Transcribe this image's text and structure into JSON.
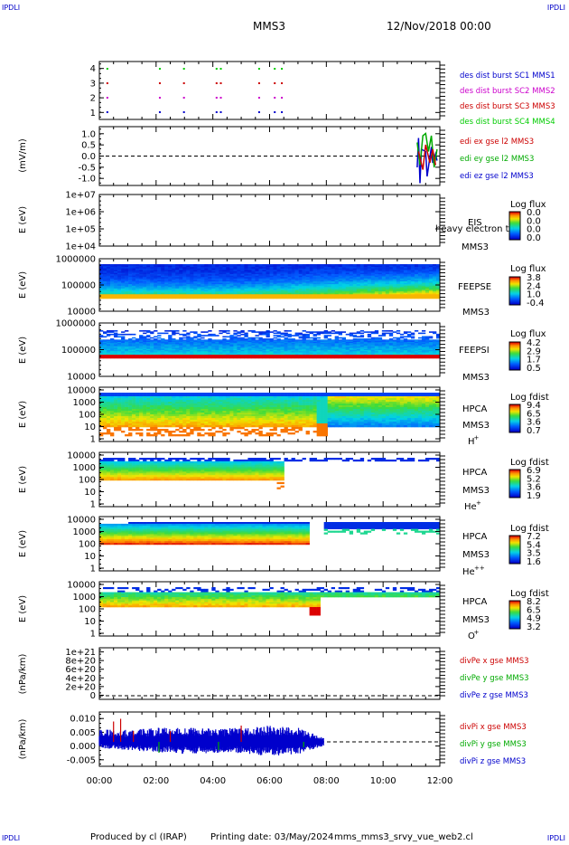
{
  "header": {
    "corner_labels": [
      "IPDLI",
      "IPDLI",
      "IPDLI",
      "IPDLI"
    ],
    "spacecraft": "MMS3",
    "datetime": "12/Nov/2018 00:00"
  },
  "footer": {
    "produced_by": "Produced by cl (IRAP)",
    "printing_date": "Printing date: 03/May/2024",
    "script_name": "mms_mms3_srvy_vue_web2.cl"
  },
  "chart_data": [
    {
      "type": "scatter",
      "panel": "burst-availability",
      "yticks": [
        "4",
        "3",
        "2",
        "1"
      ],
      "ylim": [
        0.5,
        4.5
      ],
      "legend": [
        {
          "text": "des dist burst SC1 MMS1",
          "color": "#0000cc"
        },
        {
          "text": "des dist burst SC2 MMS2",
          "color": "#cc00cc"
        },
        {
          "text": "des dist burst SC3 MMS3",
          "color": "#cc0000"
        },
        {
          "text": "des dist burst SC4 MMS4",
          "color": "#00cc00"
        }
      ],
      "series": [
        {
          "y": 4,
          "color": "#00cc00",
          "x": [
            0.25,
            2.1,
            2.95,
            4.1,
            4.25,
            5.6,
            6.15,
            6.4
          ]
        },
        {
          "y": 3,
          "color": "#cc0000",
          "x": [
            0.25,
            2.1,
            2.95,
            4.1,
            4.25,
            5.6,
            6.15,
            6.4
          ]
        },
        {
          "y": 2,
          "color": "#cc00cc",
          "x": [
            0.25,
            2.1,
            2.95,
            4.1,
            4.25,
            5.6,
            6.15,
            6.4
          ]
        },
        {
          "y": 1,
          "color": "#0000cc",
          "x": [
            0.25,
            2.1,
            2.95,
            4.1,
            4.25,
            5.6,
            6.15,
            6.4
          ]
        }
      ]
    },
    {
      "type": "line",
      "panel": "edi-electric-field",
      "ylabel": "(mV/m)",
      "yticks": [
        "1.0",
        "0.5",
        "0.0",
        "-0.5",
        "-1.0"
      ],
      "ylim": [
        -1.3,
        1.3
      ],
      "legend": [
        {
          "text": "edi ex gse l2 MMS3",
          "color": "#cc0000"
        },
        {
          "text": "edi ey gse l2 MMS3",
          "color": "#00aa00"
        },
        {
          "text": "edi ez gse l2 MMS3",
          "color": "#0000cc"
        }
      ],
      "series": [
        {
          "color": "#0000cc",
          "x": [
            11.2,
            11.25,
            11.3,
            11.35,
            11.5,
            11.55,
            11.7,
            11.75,
            11.85,
            11.9
          ],
          "y": [
            -0.5,
            0.8,
            -1.2,
            0.3,
            0.2,
            -0.9,
            0.4,
            -0.3,
            0.1,
            -0.2
          ]
        },
        {
          "color": "#00aa00",
          "x": [
            11.2,
            11.3,
            11.4,
            11.5,
            11.6,
            11.7,
            11.8,
            11.9
          ],
          "y": [
            0.6,
            -0.4,
            0.9,
            1.0,
            0.2,
            0.9,
            -0.5,
            0.3
          ]
        },
        {
          "color": "#cc0000",
          "x": [
            11.25,
            11.4,
            11.5,
            11.65,
            11.75,
            11.85
          ],
          "y": [
            0.2,
            -0.6,
            0.5,
            -0.3,
            0.3,
            -0.4
          ]
        }
      ]
    },
    {
      "type": "heatmap",
      "panel": "eis",
      "ylabel": "E (eV)",
      "yticks": [
        "1e+07",
        "1e+06",
        "1e+05",
        "1e+04"
      ],
      "instrument": [
        "EIS",
        "heavy electron to",
        "MMS3"
      ],
      "colorbar": {
        "title": "Log flux",
        "ticks": [
          "0.0",
          "0.0",
          "0.0",
          "0.0"
        ]
      }
    },
    {
      "type": "heatmap",
      "panel": "feeps-electron",
      "ylabel": "E (eV)",
      "yticks": [
        "1000000",
        "100000",
        "10000"
      ],
      "instrument": [
        "FEEPSE",
        "MMS3"
      ],
      "colorbar": {
        "title": "Log flux",
        "ticks": [
          "3.8",
          "2.4",
          "1.0",
          "-0.4"
        ]
      }
    },
    {
      "type": "heatmap",
      "panel": "feeps-ion",
      "ylabel": "E (eV)",
      "yticks": [
        "1000000",
        "100000",
        "10000"
      ],
      "instrument": [
        "FEEPSI",
        "MMS3"
      ],
      "colorbar": {
        "title": "Log flux",
        "ticks": [
          "4.2",
          "2.9",
          "1.7",
          "0.5"
        ]
      }
    },
    {
      "type": "heatmap",
      "panel": "hpca-h",
      "ylabel": "E (eV)",
      "yticks": [
        "10000",
        "1000",
        "100",
        "10",
        "1"
      ],
      "instrument": [
        "HPCA",
        "MMS3",
        "H",
        "+"
      ],
      "colorbar": {
        "title": "Log fdist",
        "ticks": [
          "9.4",
          "6.5",
          "3.6",
          "0.7"
        ]
      }
    },
    {
      "type": "heatmap",
      "panel": "hpca-he",
      "ylabel": "E (eV)",
      "yticks": [
        "10000",
        "1000",
        "100",
        "10",
        "1"
      ],
      "instrument": [
        "HPCA",
        "MMS3",
        "He",
        "+"
      ],
      "colorbar": {
        "title": "Log fdist",
        "ticks": [
          "6.9",
          "5.2",
          "3.6",
          "1.9"
        ]
      }
    },
    {
      "type": "heatmap",
      "panel": "hpca-he2",
      "ylabel": "E (eV)",
      "yticks": [
        "10000",
        "1000",
        "100",
        "10",
        "1"
      ],
      "instrument": [
        "HPCA",
        "MMS3",
        "He",
        "++"
      ],
      "colorbar": {
        "title": "Log fdist",
        "ticks": [
          "7.2",
          "5.4",
          "3.5",
          "1.6"
        ]
      }
    },
    {
      "type": "heatmap",
      "panel": "hpca-o",
      "ylabel": "E (eV)",
      "yticks": [
        "10000",
        "1000",
        "100",
        "10",
        "1"
      ],
      "instrument": [
        "HPCA",
        "MMS3",
        "O",
        "+"
      ],
      "colorbar": {
        "title": "Log fdist",
        "ticks": [
          "8.2",
          "6.5",
          "4.9",
          "3.2"
        ]
      }
    },
    {
      "type": "line",
      "panel": "divpe",
      "ylabel": "(nPa/km)",
      "yticks": [
        "1e+21",
        "8e+20",
        "6e+20",
        "4e+20",
        "2e+20",
        "0"
      ],
      "legend": [
        {
          "text": "divPe x gse MMS3",
          "color": "#cc0000"
        },
        {
          "text": "divPe y gse MMS3",
          "color": "#00aa00"
        },
        {
          "text": "divPe z gse MMS3",
          "color": "#0000cc"
        }
      ]
    },
    {
      "type": "line",
      "panel": "divpi",
      "ylabel": "(nPa/km)",
      "yticks": [
        "0.010",
        "0.005",
        "0.000",
        "-0.005"
      ],
      "ylim": [
        -0.009,
        0.011
      ],
      "xticks": [
        "00:00",
        "02:00",
        "04:00",
        "06:00",
        "08:00",
        "10:00",
        "12:00"
      ],
      "xlim": [
        0,
        12
      ],
      "legend": [
        {
          "text": "divPi x gse MMS3",
          "color": "#cc0000"
        },
        {
          "text": "divPi y gse MMS3",
          "color": "#00aa00"
        },
        {
          "text": "divPi z gse MMS3",
          "color": "#0000cc"
        }
      ],
      "series": [
        {
          "name": "divPi z",
          "color": "#0000cc",
          "x_range": [
            0,
            7.9
          ],
          "envelope": [
            [
              0,
              0.0015,
              0.003
            ],
            [
              1,
              0.002,
              0.003
            ],
            [
              2,
              0.0025,
              0.0035
            ],
            [
              3,
              0.003,
              0.0035
            ],
            [
              4,
              0.0028,
              0.0035
            ],
            [
              5,
              0.0028,
              0.0035
            ],
            [
              6,
              0.0035,
              0.004
            ],
            [
              7,
              0.003,
              0.0035
            ],
            [
              7.9,
              0.001,
              0.001
            ]
          ]
        },
        {
          "name": "divPi x",
          "color": "#cc0000",
          "spikes": [
            [
              0.5,
              0.0075
            ],
            [
              0.75,
              0.0085
            ],
            [
              1.2,
              0.004
            ],
            [
              2.5,
              0.004
            ],
            [
              5.0,
              0.006
            ]
          ]
        },
        {
          "name": "divPi y",
          "color": "#00aa00",
          "spikes": [
            [
              2.1,
              -0.004
            ],
            [
              4.2,
              -0.003
            ],
            [
              7.2,
              -0.002
            ]
          ]
        }
      ]
    }
  ]
}
